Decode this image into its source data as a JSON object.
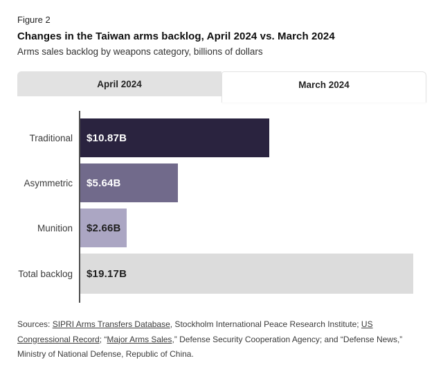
{
  "header": {
    "figure_label": "Figure 2",
    "title": "Changes in the Taiwan arms backlog, April 2024 vs. March 2024",
    "subtitle": "Arms sales backlog by weapons category, billions of dollars"
  },
  "tabs": [
    {
      "label": "April 2024",
      "active": false
    },
    {
      "label": "March 2024",
      "active": true
    }
  ],
  "chart_data": {
    "type": "bar",
    "orientation": "horizontal",
    "title": "Changes in the Taiwan arms backlog, April 2024 vs. March 2024",
    "xlabel": "billions of dollars",
    "ylabel": "weapons category",
    "categories": [
      "Traditional",
      "Asymmetric",
      "Munition",
      "Total backlog"
    ],
    "values": [
      10.87,
      5.64,
      2.66,
      19.17
    ],
    "value_labels": [
      "$10.87B",
      "$5.64B",
      "$2.66B",
      "$19.17B"
    ],
    "bar_colors": [
      "#2a233f",
      "#716a8b",
      "#aba6c3",
      "#dcdcdc"
    ],
    "value_text_colors": [
      "#ffffff",
      "#ffffff",
      "#1f1f1f",
      "#1f1f1f"
    ],
    "xlim": [
      0,
      19.9
    ],
    "grid": false,
    "legend_position": "none"
  },
  "colors": {
    "tab_inactive_bg": "#e2e2e2",
    "tab_active_bg": "#ffffff",
    "tab_border": "#e3e3e3",
    "axis_line": "#4d4d4d"
  },
  "sources": {
    "segments": [
      {
        "text": "Sources: ",
        "link": false
      },
      {
        "text": "SIPRI Arms Transfers Database",
        "link": true
      },
      {
        "text": ", Stockholm International Peace Research Institute; ",
        "link": false
      },
      {
        "text": "US Congressional Record",
        "link": true
      },
      {
        "text": "; “",
        "link": false
      },
      {
        "text": "Major Arms Sales",
        "link": true
      },
      {
        "text": ",” Defense Security Cooperation Agency; and “Defense News,” Ministry of National Defense, Republic of China.",
        "link": false
      }
    ]
  }
}
